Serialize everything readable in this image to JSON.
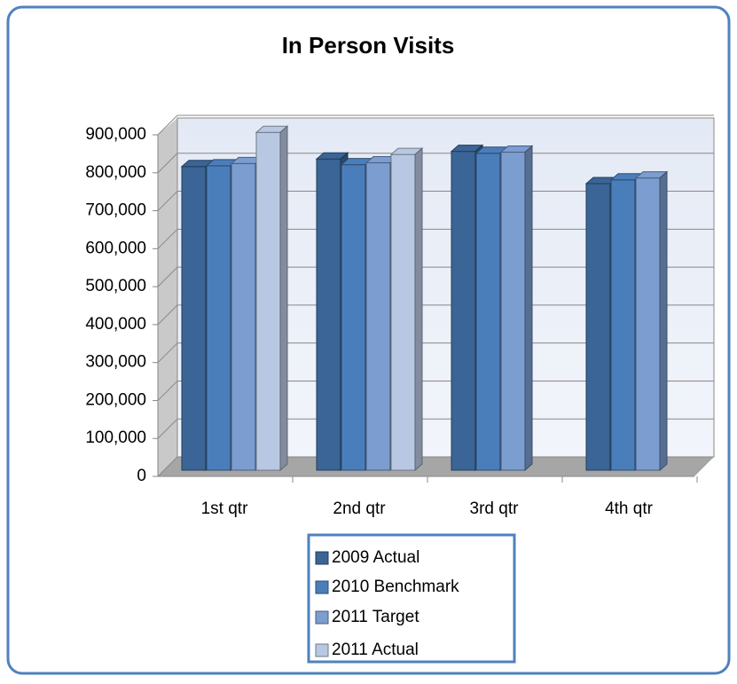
{
  "chart_data": {
    "type": "bar3d",
    "title": "In Person Visits",
    "categories": [
      "1st qtr",
      "2nd qtr",
      "3rd qtr",
      "4th qtr"
    ],
    "series": [
      {
        "name": "2009 Actual",
        "color": "#3a6596",
        "values": [
          800000,
          820000,
          840000,
          755000
        ]
      },
      {
        "name": "2010 Benchmark",
        "color": "#4a7ebb",
        "values": [
          802000,
          805000,
          835000,
          765000
        ]
      },
      {
        "name": "2011 Target",
        "color": "#7b9dd0",
        "values": [
          808000,
          810000,
          838000,
          770000
        ]
      },
      {
        "name": "2011 Actual",
        "color": "#b9c8e2",
        "values": [
          890000,
          832000,
          null,
          null
        ]
      }
    ],
    "ylim": [
      0,
      900000
    ],
    "yticks": [
      0,
      {
        "value": 100000,
        "label": "100,000"
      },
      {
        "value": 200000,
        "label": "200,000"
      },
      {
        "value": 300000,
        "label": "300,000"
      },
      {
        "value": 400000,
        "label": "400,000"
      },
      {
        "value": 500000,
        "label": "500,000"
      },
      {
        "value": 600000,
        "label": "600,000"
      },
      {
        "value": 700000,
        "label": "700,000"
      },
      {
        "value": 800000,
        "label": "800,000"
      },
      {
        "value": 900000,
        "label": "900,000"
      }
    ],
    "grid": true,
    "legend": "bottom"
  }
}
